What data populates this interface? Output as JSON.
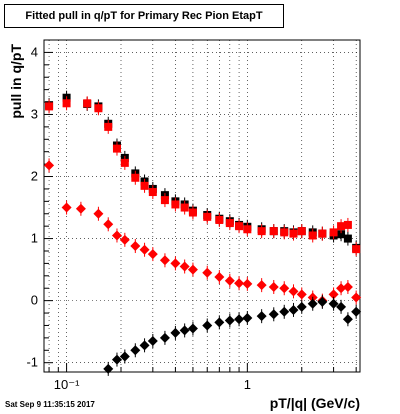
{
  "chart_data": {
    "type": "scatter",
    "title": "Fitted pull in q/pT for Primary Rec Pion EtapT",
    "xlabel": "pT/|q| (GeV/c)",
    "ylabel": "pull in q/pT",
    "xscale": "log",
    "xlim": [
      0.075,
      4.2
    ],
    "ylim": [
      -1.15,
      4.2
    ],
    "grid": true,
    "x_ticks": [
      {
        "value": 0.1,
        "label": "10⁻¹"
      },
      {
        "value": 1,
        "label": "1"
      }
    ],
    "y_ticks": [
      -1,
      0,
      1,
      2,
      3,
      4
    ],
    "series": [
      {
        "color": "#000000",
        "marker": "square",
        "x": [
          0.08,
          0.1,
          0.13,
          0.15,
          0.17,
          0.19,
          0.21,
          0.24,
          0.27,
          0.3,
          0.35,
          0.4,
          0.45,
          0.5,
          0.6,
          0.7,
          0.8,
          0.9,
          1.0,
          1.2,
          1.4,
          1.6,
          1.8,
          2.0,
          2.3,
          2.6,
          3.0,
          3.3,
          3.6,
          4.0
        ],
        "y": [
          3.15,
          3.27,
          3.17,
          3.13,
          2.85,
          2.5,
          2.3,
          2.05,
          1.92,
          1.8,
          1.7,
          1.6,
          1.55,
          1.45,
          1.38,
          1.32,
          1.28,
          1.22,
          1.19,
          1.15,
          1.12,
          1.12,
          1.1,
          1.12,
          1.1,
          1.08,
          1.05,
          1.07,
          1.0,
          0.85
        ]
      },
      {
        "color": "#ff0000",
        "marker": "square",
        "x": [
          0.08,
          0.1,
          0.13,
          0.15,
          0.17,
          0.19,
          0.21,
          0.24,
          0.27,
          0.3,
          0.35,
          0.4,
          0.45,
          0.5,
          0.6,
          0.7,
          0.8,
          0.9,
          1.0,
          1.2,
          1.4,
          1.6,
          1.8,
          2.0,
          2.3,
          2.6,
          3.0,
          3.3,
          3.6,
          4.0
        ],
        "y": [
          3.13,
          3.18,
          3.18,
          3.1,
          2.8,
          2.45,
          2.22,
          1.98,
          1.85,
          1.75,
          1.62,
          1.55,
          1.5,
          1.42,
          1.35,
          1.3,
          1.25,
          1.2,
          1.15,
          1.12,
          1.12,
          1.1,
          1.08,
          1.12,
          1.05,
          1.08,
          1.1,
          1.2,
          1.22,
          0.83
        ]
      },
      {
        "color": "#ff0000",
        "marker": "diamond",
        "x": [
          0.08,
          0.1,
          0.12,
          0.15,
          0.17,
          0.19,
          0.21,
          0.24,
          0.27,
          0.3,
          0.35,
          0.4,
          0.45,
          0.5,
          0.6,
          0.7,
          0.8,
          0.9,
          1.0,
          1.2,
          1.4,
          1.6,
          1.8,
          2.0,
          2.3,
          2.6,
          3.0,
          3.3,
          3.6,
          4.0
        ],
        "y": [
          2.18,
          1.5,
          1.48,
          1.4,
          1.23,
          1.05,
          0.98,
          0.88,
          0.82,
          0.75,
          0.65,
          0.6,
          0.55,
          0.5,
          0.45,
          0.38,
          0.32,
          0.28,
          0.27,
          0.25,
          0.22,
          0.2,
          0.15,
          0.1,
          0.05,
          0.0,
          0.1,
          0.2,
          0.22,
          0.05
        ]
      },
      {
        "color": "#000000",
        "marker": "diamond",
        "x": [
          0.17,
          0.19,
          0.21,
          0.24,
          0.27,
          0.3,
          0.35,
          0.4,
          0.45,
          0.5,
          0.6,
          0.7,
          0.8,
          0.9,
          1.0,
          1.2,
          1.4,
          1.6,
          1.8,
          2.0,
          2.3,
          2.6,
          3.0,
          3.3,
          3.6,
          4.0
        ],
        "y": [
          -1.1,
          -0.95,
          -0.9,
          -0.8,
          -0.72,
          -0.65,
          -0.6,
          -0.52,
          -0.48,
          -0.45,
          -0.4,
          -0.35,
          -0.32,
          -0.3,
          -0.28,
          -0.25,
          -0.22,
          -0.18,
          -0.15,
          -0.1,
          -0.05,
          -0.02,
          -0.05,
          -0.1,
          -0.3,
          -0.18
        ]
      }
    ],
    "footer": "Sat Sep  9 11:35:15 2017"
  }
}
